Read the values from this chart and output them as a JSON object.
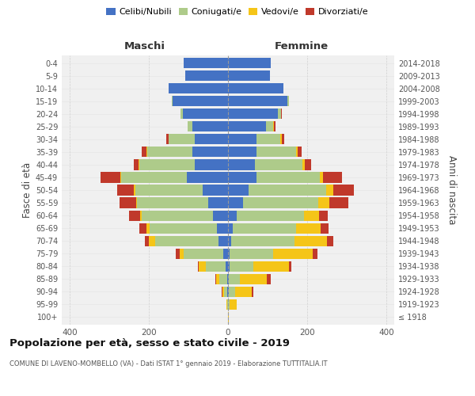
{
  "age_groups": [
    "100+",
    "95-99",
    "90-94",
    "85-89",
    "80-84",
    "75-79",
    "70-74",
    "65-69",
    "60-64",
    "55-59",
    "50-54",
    "45-49",
    "40-44",
    "35-39",
    "30-34",
    "25-29",
    "20-24",
    "15-19",
    "10-14",
    "5-9",
    "0-4"
  ],
  "birth_years": [
    "≤ 1918",
    "1919-1923",
    "1924-1928",
    "1929-1933",
    "1934-1938",
    "1939-1943",
    "1944-1948",
    "1949-1953",
    "1954-1958",
    "1959-1963",
    "1964-1968",
    "1969-1973",
    "1974-1978",
    "1979-1983",
    "1984-1988",
    "1989-1993",
    "1994-1998",
    "1999-2003",
    "2004-2008",
    "2009-2013",
    "2014-2018"
  ],
  "male": {
    "celibi": [
      0,
      0,
      2,
      3,
      6,
      12,
      25,
      28,
      38,
      50,
      65,
      105,
      85,
      90,
      85,
      90,
      115,
      140,
      150,
      108,
      112
    ],
    "coniugati": [
      0,
      3,
      8,
      20,
      50,
      100,
      160,
      170,
      180,
      180,
      170,
      165,
      140,
      115,
      65,
      12,
      6,
      3,
      0,
      0,
      0
    ],
    "vedovi": [
      0,
      2,
      5,
      8,
      18,
      10,
      15,
      8,
      5,
      3,
      3,
      3,
      2,
      2,
      0,
      0,
      0,
      0,
      0,
      0,
      0
    ],
    "divorziati": [
      0,
      0,
      2,
      2,
      2,
      10,
      10,
      18,
      28,
      42,
      42,
      50,
      12,
      12,
      6,
      0,
      0,
      0,
      0,
      0,
      0
    ]
  },
  "female": {
    "nubili": [
      0,
      0,
      2,
      2,
      4,
      4,
      8,
      12,
      22,
      38,
      52,
      72,
      68,
      72,
      72,
      96,
      125,
      150,
      140,
      106,
      108
    ],
    "coniugate": [
      0,
      4,
      15,
      28,
      60,
      110,
      160,
      160,
      170,
      190,
      195,
      160,
      120,
      100,
      60,
      18,
      8,
      3,
      0,
      0,
      0
    ],
    "vedove": [
      2,
      18,
      42,
      68,
      90,
      100,
      82,
      62,
      38,
      28,
      18,
      8,
      5,
      3,
      3,
      2,
      0,
      0,
      0,
      0,
      0
    ],
    "divorziate": [
      0,
      0,
      4,
      10,
      6,
      12,
      16,
      20,
      22,
      48,
      52,
      48,
      16,
      10,
      6,
      3,
      2,
      0,
      0,
      0,
      0
    ]
  },
  "colors": {
    "celibi_nubili": "#4472C4",
    "coniugati": "#AECB8A",
    "vedovi": "#F5C518",
    "divorziati": "#C0392B"
  },
  "xlim": 420,
  "title": "Popolazione per età, sesso e stato civile - 2019",
  "subtitle": "COMUNE DI LAVENO-MOMBELLO (VA) - Dati ISTAT 1° gennaio 2019 - Elaborazione TUTTITALIA.IT",
  "ylabel": "Fasce di età",
  "right_ylabel": "Anni di nascita",
  "background_color": "#f0f0f0",
  "grid_color": "#cccccc"
}
